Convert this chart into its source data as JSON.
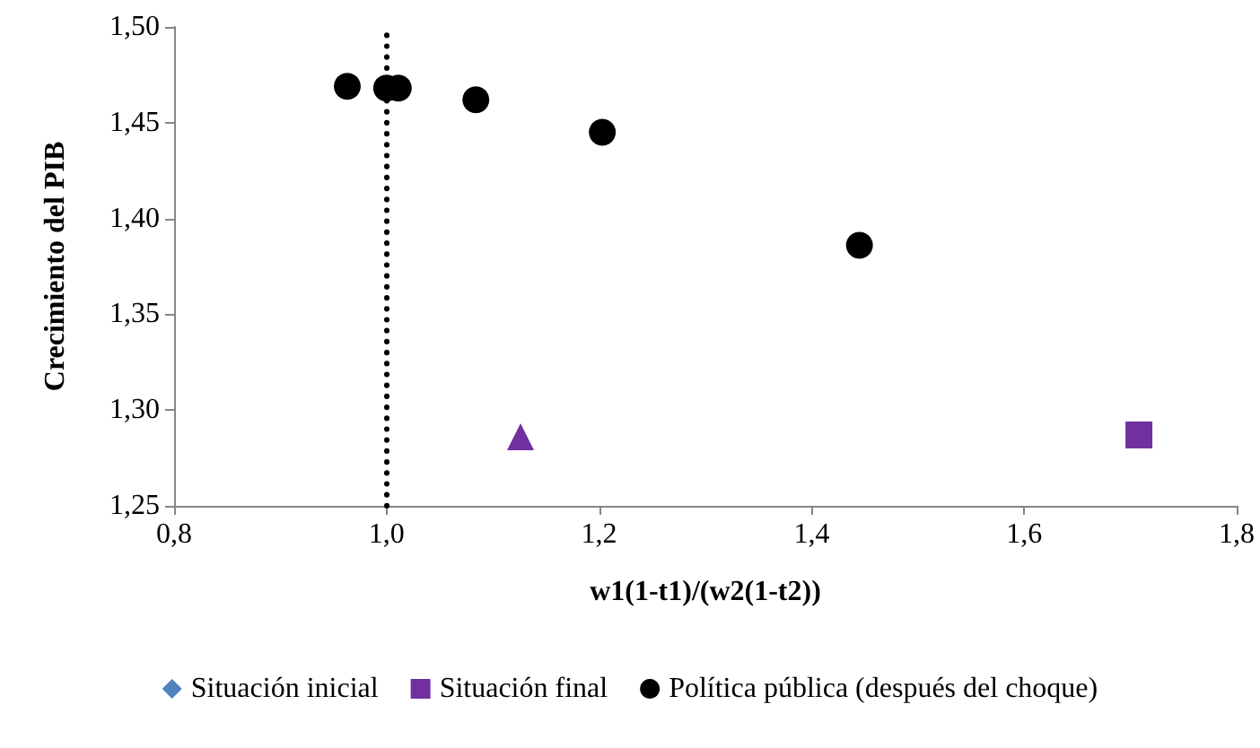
{
  "chart_data": {
    "type": "scatter",
    "xlabel": "w1(1-t1)/(w2(1-t2))",
    "ylabel": "Crecimiento del PIB",
    "xlim": [
      0.8,
      1.8
    ],
    "xticks": [
      {
        "value": 0.8,
        "label": "0,8"
      },
      {
        "value": 1.0,
        "label": "1,0"
      },
      {
        "value": 1.2,
        "label": "1,2"
      },
      {
        "value": 1.4,
        "label": "1,4"
      },
      {
        "value": 1.6,
        "label": "1,6"
      },
      {
        "value": 1.8,
        "label": "1,8"
      }
    ],
    "ylim": [
      1.25,
      1.5
    ],
    "yticks": [
      {
        "value": 1.25,
        "label": "1,25"
      },
      {
        "value": 1.3,
        "label": "1,30"
      },
      {
        "value": 1.35,
        "label": "1,35"
      },
      {
        "value": 1.4,
        "label": "1,40"
      },
      {
        "value": 1.45,
        "label": "1,45"
      },
      {
        "value": 1.5,
        "label": "1,50"
      }
    ],
    "grid": false,
    "legend": "bottom",
    "series": [
      {
        "name": "Situación inicial",
        "color": "#4f81bd",
        "marker": "diamond"
      },
      {
        "name": "Situación final",
        "color": "#7030a0",
        "marker": "square",
        "x": [
          1.708
        ],
        "values": [
          1.287
        ]
      },
      {
        "name": "Política pública (después del choque)",
        "color": "#000000",
        "marker": "circle",
        "x": [
          0.963,
          1.0,
          1.011,
          1.084,
          1.203,
          1.445
        ],
        "values": [
          1.469,
          1.468,
          1.468,
          1.462,
          1.445,
          1.386
        ]
      },
      {
        "color": "#7030a0",
        "marker": "triangle",
        "x": [
          1.126
        ],
        "values": [
          1.286
        ]
      }
    ],
    "ref_lines": [
      {
        "axis": "x",
        "value": 1.0,
        "color": "#000000",
        "line_style": "dotted"
      }
    ]
  }
}
